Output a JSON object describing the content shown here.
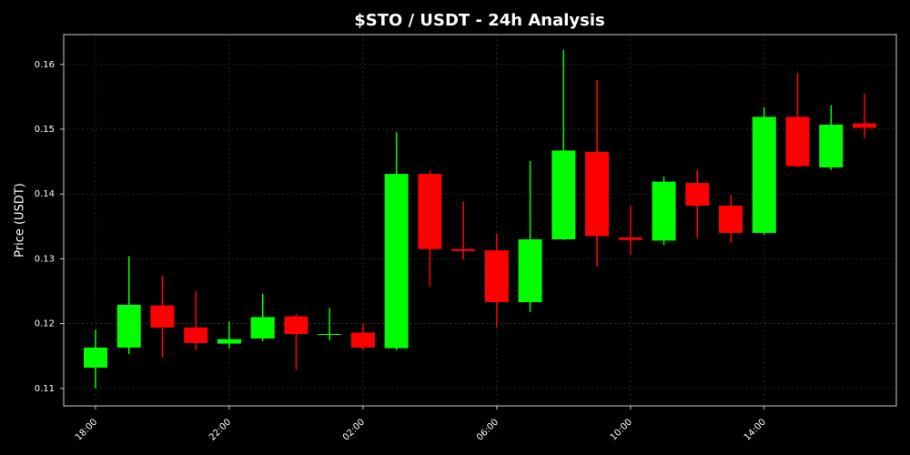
{
  "chart_data": {
    "type": "candlestick",
    "title": "$STO / USDT - 24h Analysis",
    "y_label": "Price (USDT)",
    "categories": [
      "18:00",
      null,
      null,
      null,
      "22:00",
      null,
      null,
      null,
      "02:00",
      null,
      null,
      null,
      "06:00",
      null,
      null,
      null,
      "10:00",
      null,
      null,
      null,
      "14:00",
      null,
      null,
      null
    ],
    "open": [
      0.1132,
      0.1163,
      0.1228,
      0.1194,
      0.1169,
      0.1177,
      0.1211,
      0.1183,
      0.1186,
      0.1162,
      0.1431,
      0.1315,
      0.1313,
      0.1233,
      0.133,
      0.1465,
      0.1333,
      0.1328,
      0.1417,
      0.1382,
      0.134,
      0.1519,
      0.1441,
      0.1509
    ],
    "high": [
      0.1191,
      0.1304,
      0.1274,
      0.125,
      0.1203,
      0.1246,
      0.1215,
      0.1224,
      0.12,
      0.1495,
      0.1436,
      0.1388,
      0.1339,
      0.1451,
      0.1622,
      0.1575,
      0.1382,
      0.1427,
      0.1437,
      0.1399,
      0.1534,
      0.1587,
      0.1537,
      0.1555
    ],
    "low": [
      0.11,
      0.1153,
      0.1148,
      0.1159,
      0.1162,
      0.1173,
      0.1129,
      0.1174,
      0.1159,
      0.1159,
      0.1257,
      0.1299,
      0.1194,
      0.1218,
      0.1329,
      0.1288,
      0.1306,
      0.1321,
      0.1332,
      0.1325,
      0.1337,
      0.1441,
      0.1437,
      0.1486
    ],
    "close": [
      0.1163,
      0.1229,
      0.1194,
      0.117,
      0.1176,
      0.121,
      0.1184,
      0.1184,
      0.1163,
      0.1431,
      0.1315,
      0.1312,
      0.1233,
      0.133,
      0.1467,
      0.1335,
      0.1329,
      0.1419,
      0.1382,
      0.134,
      0.1519,
      0.1443,
      0.1507,
      0.1502
    ],
    "up_color": "#00ff00",
    "down_color": "#ff0000",
    "ylim": [
      0.1073,
      0.1646
    ],
    "yticks": [
      0.11,
      0.12,
      0.13,
      0.14,
      0.15,
      0.16
    ],
    "grid": true
  }
}
